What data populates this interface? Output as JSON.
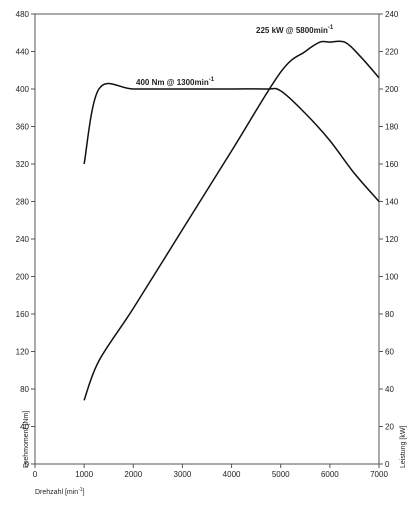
{
  "chart_data": {
    "type": "line",
    "xlabel": "Drehzahl [min",
    "xlabel_sup": "-1",
    "xlabel_end": "]",
    "ylabel_left": "Drehmoment [Nm]",
    "ylabel_right": "Leistung [kW]",
    "xlim": [
      0,
      7000
    ],
    "ylim_left": [
      0,
      480
    ],
    "ylim_right": [
      0,
      240
    ],
    "x_ticks": [
      0,
      1000,
      2000,
      3000,
      4000,
      5000,
      6000,
      7000
    ],
    "y_ticks_left": [
      0,
      40,
      80,
      120,
      160,
      200,
      240,
      280,
      320,
      360,
      400,
      440,
      480
    ],
    "y_ticks_right": [
      0,
      20,
      40,
      60,
      80,
      100,
      120,
      140,
      160,
      180,
      200,
      220,
      240
    ],
    "grid": false,
    "series": [
      {
        "axis": "left",
        "x": [
          1000,
          1300,
          2000,
          3000,
          4000,
          4700,
          5000,
          5500,
          6000,
          6500,
          7000
        ],
        "y": [
          320,
          400,
          400,
          400,
          400,
          400,
          398,
          374,
          345,
          310,
          280
        ]
      },
      {
        "axis": "right",
        "x": [
          1000,
          1300,
          2000,
          3000,
          4000,
          5000,
          5500,
          5800,
          6000,
          6300,
          6600,
          7000
        ],
        "y": [
          34,
          55,
          83,
          125,
          167,
          209,
          220,
          225,
          225,
          225,
          218,
          206
        ]
      }
    ],
    "annotations": [
      {
        "text": "225 kW @ 5800min",
        "sup": "-1"
      },
      {
        "text": "400 Nm @ 1300min",
        "sup": "-1"
      }
    ]
  }
}
